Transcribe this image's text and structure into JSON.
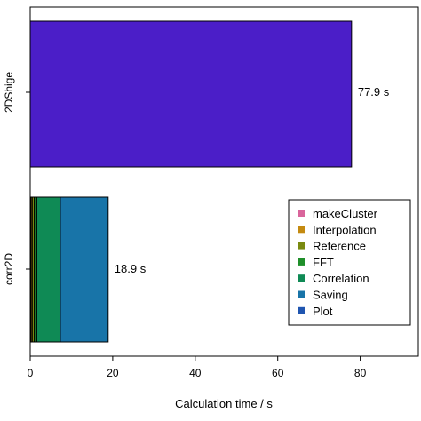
{
  "chart_data": {
    "type": "bar",
    "orientation": "horizontal",
    "stacked": true,
    "xlabel": "Calculation time / s",
    "ylabel": "",
    "xlim": [
      0,
      94
    ],
    "xticks": [
      0,
      20,
      40,
      60,
      80
    ],
    "grid": false,
    "legend_position": "right",
    "categories": [
      "2DShige",
      "corr2D"
    ],
    "totals_labels": [
      "77.9 s",
      "18.9 s"
    ],
    "series": [
      {
        "name": "makeCluster",
        "color": "#d9659b",
        "values": [
          0,
          0.2
        ]
      },
      {
        "name": "Interpolation",
        "color": "#c48a10",
        "values": [
          0,
          0.3
        ]
      },
      {
        "name": "Reference",
        "color": "#7a8a10",
        "values": [
          0,
          0.5
        ]
      },
      {
        "name": "FFT",
        "color": "#1f8f2a",
        "values": [
          0,
          0.6
        ]
      },
      {
        "name": "Correlation",
        "color": "#0f8a55",
        "values": [
          0,
          5.7
        ]
      },
      {
        "name": "Saving",
        "color": "#1874a8",
        "values": [
          0,
          11.6
        ]
      },
      {
        "name": "Plot",
        "color": "#1f55b0",
        "values": [
          0,
          0
        ]
      }
    ],
    "single_bar_color": "#4b1ec8"
  }
}
